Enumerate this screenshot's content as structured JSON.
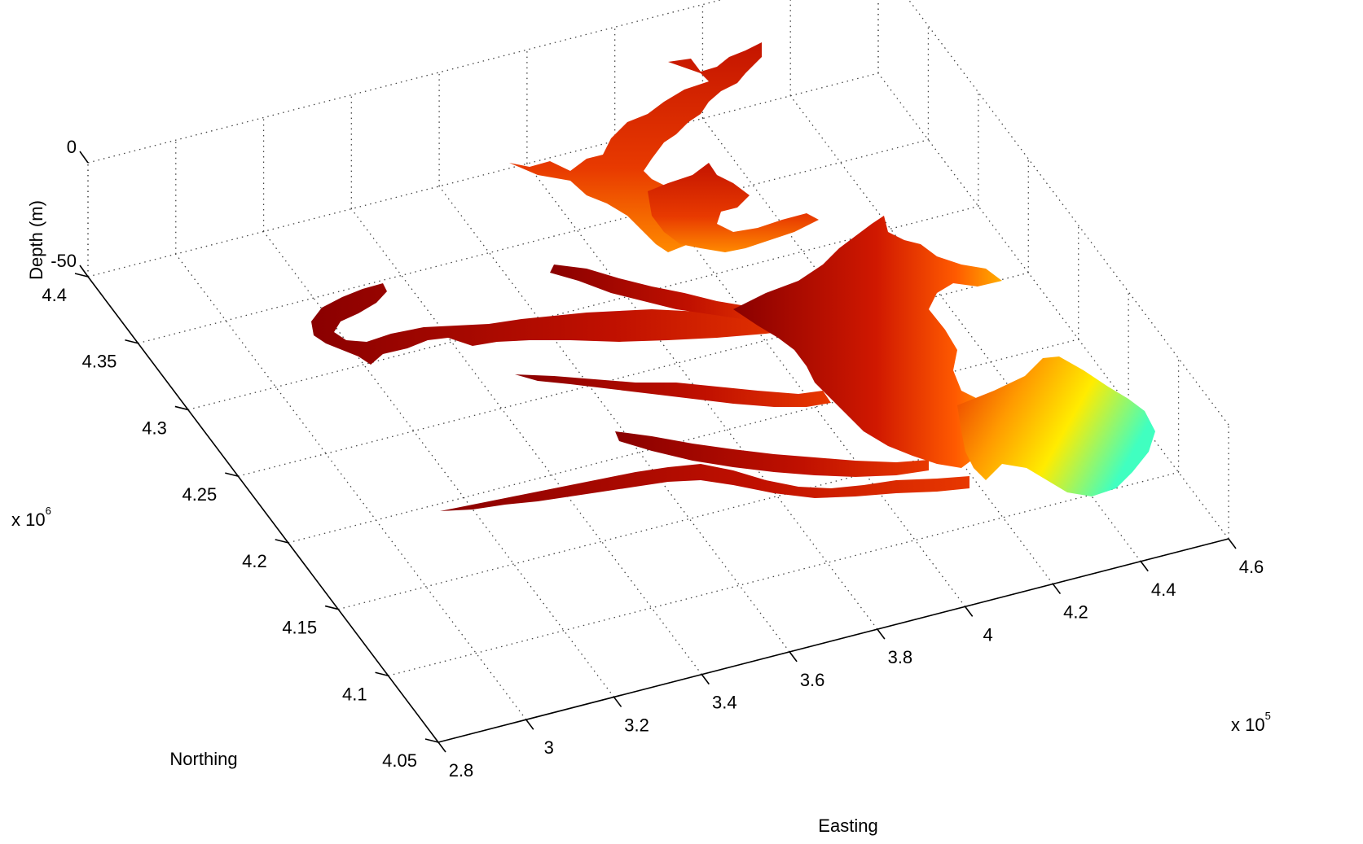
{
  "chart_data": {
    "type": "surface3d",
    "title": "",
    "xlabel": "Easting",
    "ylabel": "Northing",
    "zlabel": "Depth (m)",
    "x_exponent": "x 10",
    "x_exponent_power": "5",
    "y_exponent": "x 10",
    "y_exponent_power": "6",
    "x_ticks": [
      "2.8",
      "3",
      "3.2",
      "3.4",
      "3.6",
      "3.8",
      "4",
      "4.2",
      "4.4",
      "4.6"
    ],
    "y_ticks": [
      "4.05",
      "4.1",
      "4.15",
      "4.2",
      "4.25",
      "4.3",
      "4.35",
      "4.4"
    ],
    "z_ticks": [
      "0",
      "-50"
    ],
    "xlim": [
      280000,
      460000
    ],
    "ylim": [
      4050000,
      4400000
    ],
    "zlim": [
      -50,
      0
    ],
    "grid": true,
    "colormap": [
      "#00007f",
      "#0080ff",
      "#40ffbf",
      "#ffff00",
      "#ff8000",
      "#ff2000",
      "#9a0000"
    ]
  }
}
